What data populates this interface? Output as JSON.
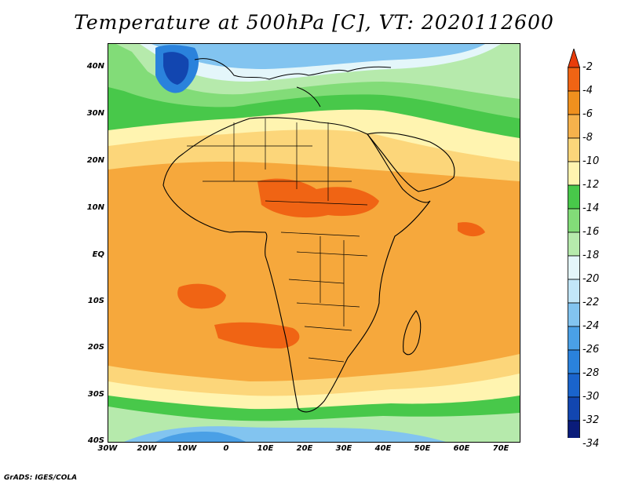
{
  "title": "Temperature at 500hPa [C], VT: 2020112600",
  "credit": "GrADS: IGES/COLA",
  "lat_labels": [
    "40N",
    "30N",
    "20N",
    "10N",
    "EQ",
    "10S",
    "20S",
    "30S",
    "40S"
  ],
  "lon_labels": [
    "30W",
    "20W",
    "10W",
    "0",
    "10E",
    "20E",
    "30E",
    "40E",
    "50E",
    "60E",
    "70E"
  ],
  "colorbar": {
    "labels": [
      "-2",
      "-4",
      "-6",
      "-8",
      "-10",
      "-12",
      "-14",
      "-16",
      "-18",
      "-20",
      "-22",
      "-24",
      "-26",
      "-28",
      "-30",
      "-32",
      "-34"
    ],
    "colors": [
      "#d8d8f4",
      "#0a1c7a",
      "#1246b0",
      "#1a64cc",
      "#2a82dc",
      "#4aa0e6",
      "#82c4f0",
      "#c2e6f8",
      "#e4f6fa",
      "#b6eaac",
      "#82dc78",
      "#48c84a",
      "#fff4b0",
      "#fcd67a",
      "#f6b24c",
      "#f0901e",
      "#f06414",
      "#e83c0a"
    ],
    "colors_order": "bottom-to-top"
  }
}
